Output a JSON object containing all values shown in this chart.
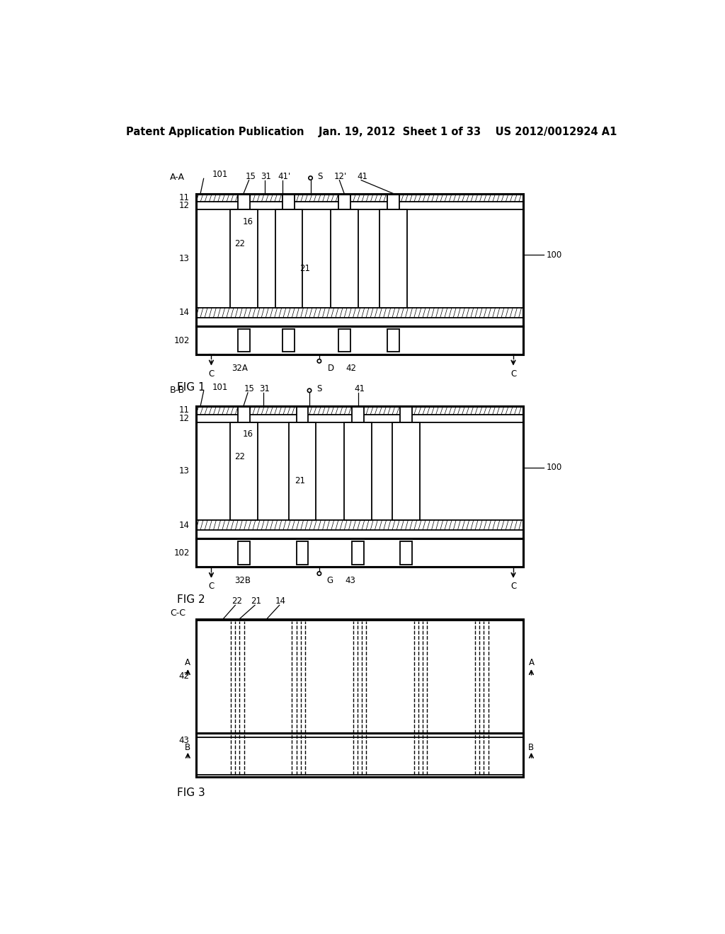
{
  "bg_color": "#ffffff",
  "header": "Patent Application Publication    Jan. 19, 2012  Sheet 1 of 33    US 2012/0012924 A1",
  "fig1_label": "FIG 1",
  "fig2_label": "FIG 2",
  "fig3_label": "FIG 3",
  "lw_outer": 2.2,
  "lw_inner": 1.3,
  "lw_thin": 1.0,
  "fs_label": 8.5,
  "fs_fig": 11,
  "fs_header": 10.5
}
